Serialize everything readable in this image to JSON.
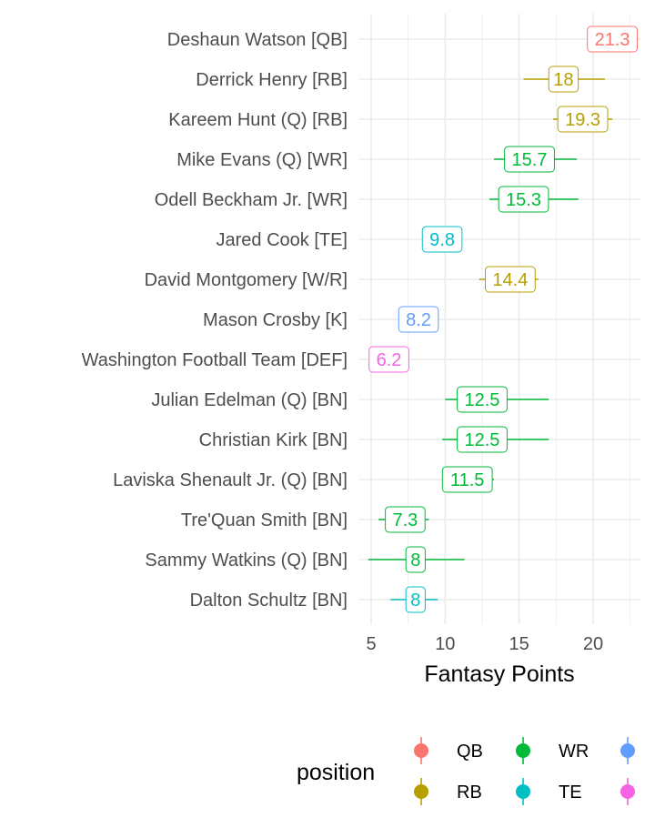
{
  "chart_data": {
    "type": "pointrange",
    "xlabel": "Fantasy Points",
    "ylabel": "",
    "xlim": [
      4.2,
      23.2
    ],
    "xticks": [
      5,
      10,
      15,
      20
    ],
    "grid": true,
    "legend_position": "bottom",
    "legend_title": "position",
    "colors": {
      "QB": "#F8766D",
      "RB": "#B79F00",
      "WR": "#00BA38",
      "TE": "#00BFC4",
      "K": "#619CFF",
      "DEF": "#F564E3"
    },
    "legend": [
      {
        "key": "QB",
        "label": "QB"
      },
      {
        "key": "RB",
        "label": "RB"
      },
      {
        "key": "WR",
        "label": "WR"
      },
      {
        "key": "TE",
        "label": "TE"
      },
      {
        "key": "K",
        "label": ""
      },
      {
        "key": "DEF",
        "label": ""
      }
    ],
    "players": [
      {
        "name": "Deshaun Watson [QB]",
        "pos": "QB",
        "value": 21.3,
        "label": "21.3",
        "low": 21.3,
        "high": 21.3
      },
      {
        "name": "Derrick Henry [RB]",
        "pos": "RB",
        "value": 18.0,
        "label": "18",
        "low": 15.3,
        "high": 20.8
      },
      {
        "name": "Kareem Hunt (Q) [RB]",
        "pos": "RB",
        "value": 19.3,
        "label": "19.3",
        "low": 17.3,
        "high": 21.3
      },
      {
        "name": "Mike Evans (Q) [WR]",
        "pos": "WR",
        "value": 15.7,
        "label": "15.7",
        "low": 13.3,
        "high": 18.9
      },
      {
        "name": "Odell Beckham Jr. [WR]",
        "pos": "WR",
        "value": 15.3,
        "label": "15.3",
        "low": 13.0,
        "high": 19.0
      },
      {
        "name": "Jared Cook [TE]",
        "pos": "TE",
        "value": 9.8,
        "label": "9.8",
        "low": 9.8,
        "high": 9.8
      },
      {
        "name": "David Montgomery [W/R]",
        "pos": "RB",
        "value": 14.4,
        "label": "14.4",
        "low": 12.3,
        "high": 16.3
      },
      {
        "name": "Mason Crosby [K]",
        "pos": "K",
        "value": 8.2,
        "label": "8.2",
        "low": 8.2,
        "high": 8.2
      },
      {
        "name": "Washington Football Team [DEF]",
        "pos": "DEF",
        "value": 6.2,
        "label": "6.2",
        "low": 6.2,
        "high": 6.2
      },
      {
        "name": "Julian Edelman (Q) [BN]",
        "pos": "WR",
        "value": 12.5,
        "label": "12.5",
        "low": 10.0,
        "high": 17.0
      },
      {
        "name": "Christian Kirk [BN]",
        "pos": "WR",
        "value": 12.5,
        "label": "12.5",
        "low": 9.8,
        "high": 17.0
      },
      {
        "name": "Laviska Shenault Jr. (Q) [BN]",
        "pos": "WR",
        "value": 11.5,
        "label": "11.5",
        "low": 10.1,
        "high": 13.3
      },
      {
        "name": "Tre'Quan Smith [BN]",
        "pos": "WR",
        "value": 7.3,
        "label": "7.3",
        "low": 5.5,
        "high": 8.9
      },
      {
        "name": "Sammy Watkins (Q) [BN]",
        "pos": "WR",
        "value": 8.0,
        "label": "8",
        "low": 4.8,
        "high": 11.3
      },
      {
        "name": "Dalton Schultz [BN]",
        "pos": "TE",
        "value": 8.0,
        "label": "8",
        "low": 6.3,
        "high": 9.5
      }
    ]
  }
}
